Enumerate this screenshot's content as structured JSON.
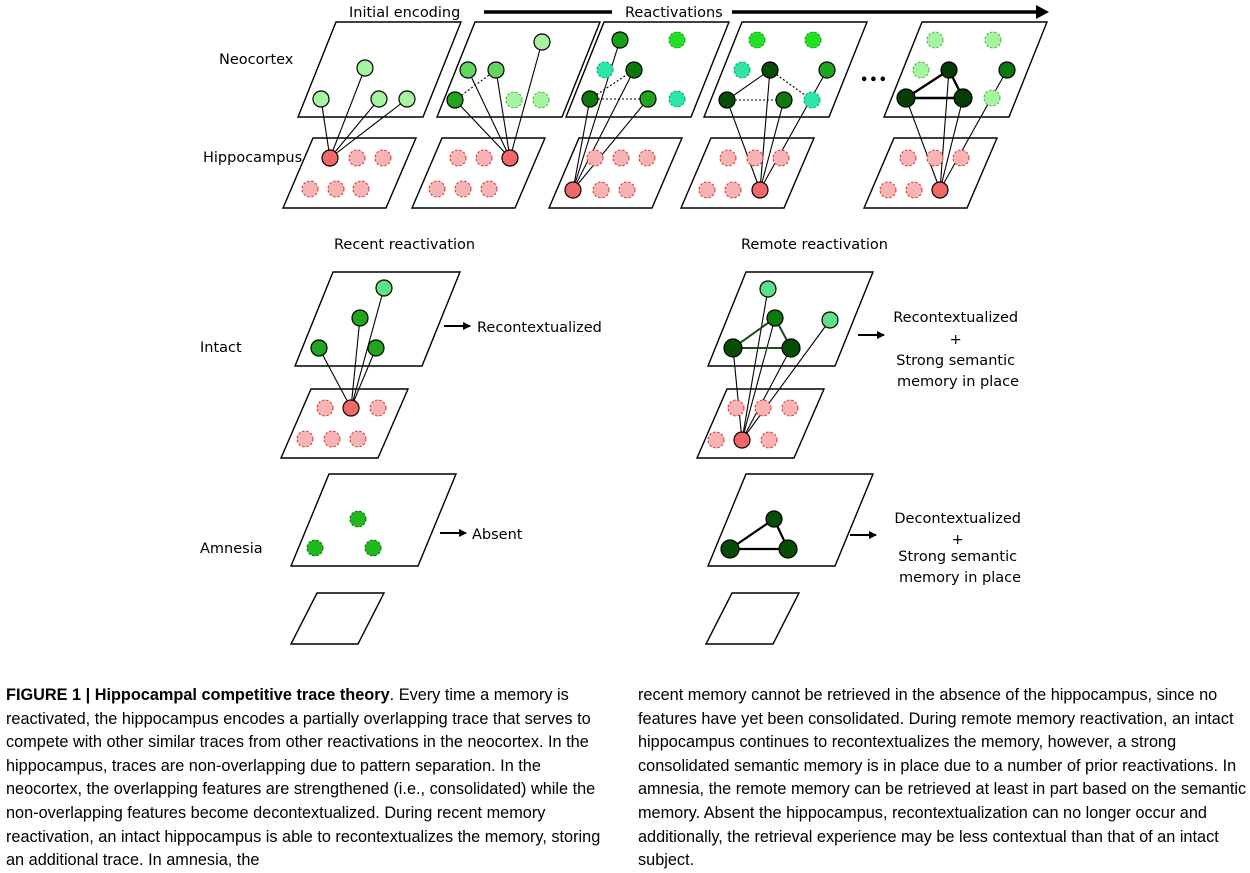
{
  "figure": {
    "initial_encoding": "Initial encoding",
    "reactivations": "Reactivations",
    "neocortex": "Neocortex",
    "hippocampus": "Hippocampus",
    "ellipsis": "•••",
    "recent_reactivation": "Recent reactivation",
    "remote_reactivation": "Remote reactivation",
    "intact": "Intact",
    "amnesia": "Amnesia",
    "recontextualized": "Recontextualized",
    "absent": "Absent",
    "remote_intact": [
      "Recontextualized",
      "+",
      "Strong semantic",
      "memory in place"
    ],
    "remote_amnesia": [
      "Decontextualized",
      "+",
      "Strong semantic",
      "memory in place"
    ]
  },
  "caption": {
    "title": "FIGURE 1 | Hippocampal competitive trace theory",
    "left_text": ". Every time a memory is reactivated, the hippocampus encodes a partially overlapping trace that serves to compete with other similar traces from other reactivations in the neocortex. In the hippocampus, traces are non-overlapping due to pattern separation. In the neocortex, the overlapping features are strengthened (i.e., consolidated) while the non-overlapping features become decontextualized. During recent memory reactivation, an intact hippocampus is able to recontextualizes the memory, storing an additional trace. In amnesia, the",
    "right_text": "recent memory cannot be retrieved in the absence of the hippocampus, since no features have yet been consolidated. During remote memory reactivation, an intact hippocampus continues to recontextualizes the memory, however, a strong consolidated semantic memory is in place due to a number of prior reactivations. In amnesia, the remote memory can be retrieved at least in part based on the semantic memory. Absent the hippocampus, recontextualization can no longer occur and additionally, the retrieval experience may be less contextual than that of an intact subject."
  }
}
